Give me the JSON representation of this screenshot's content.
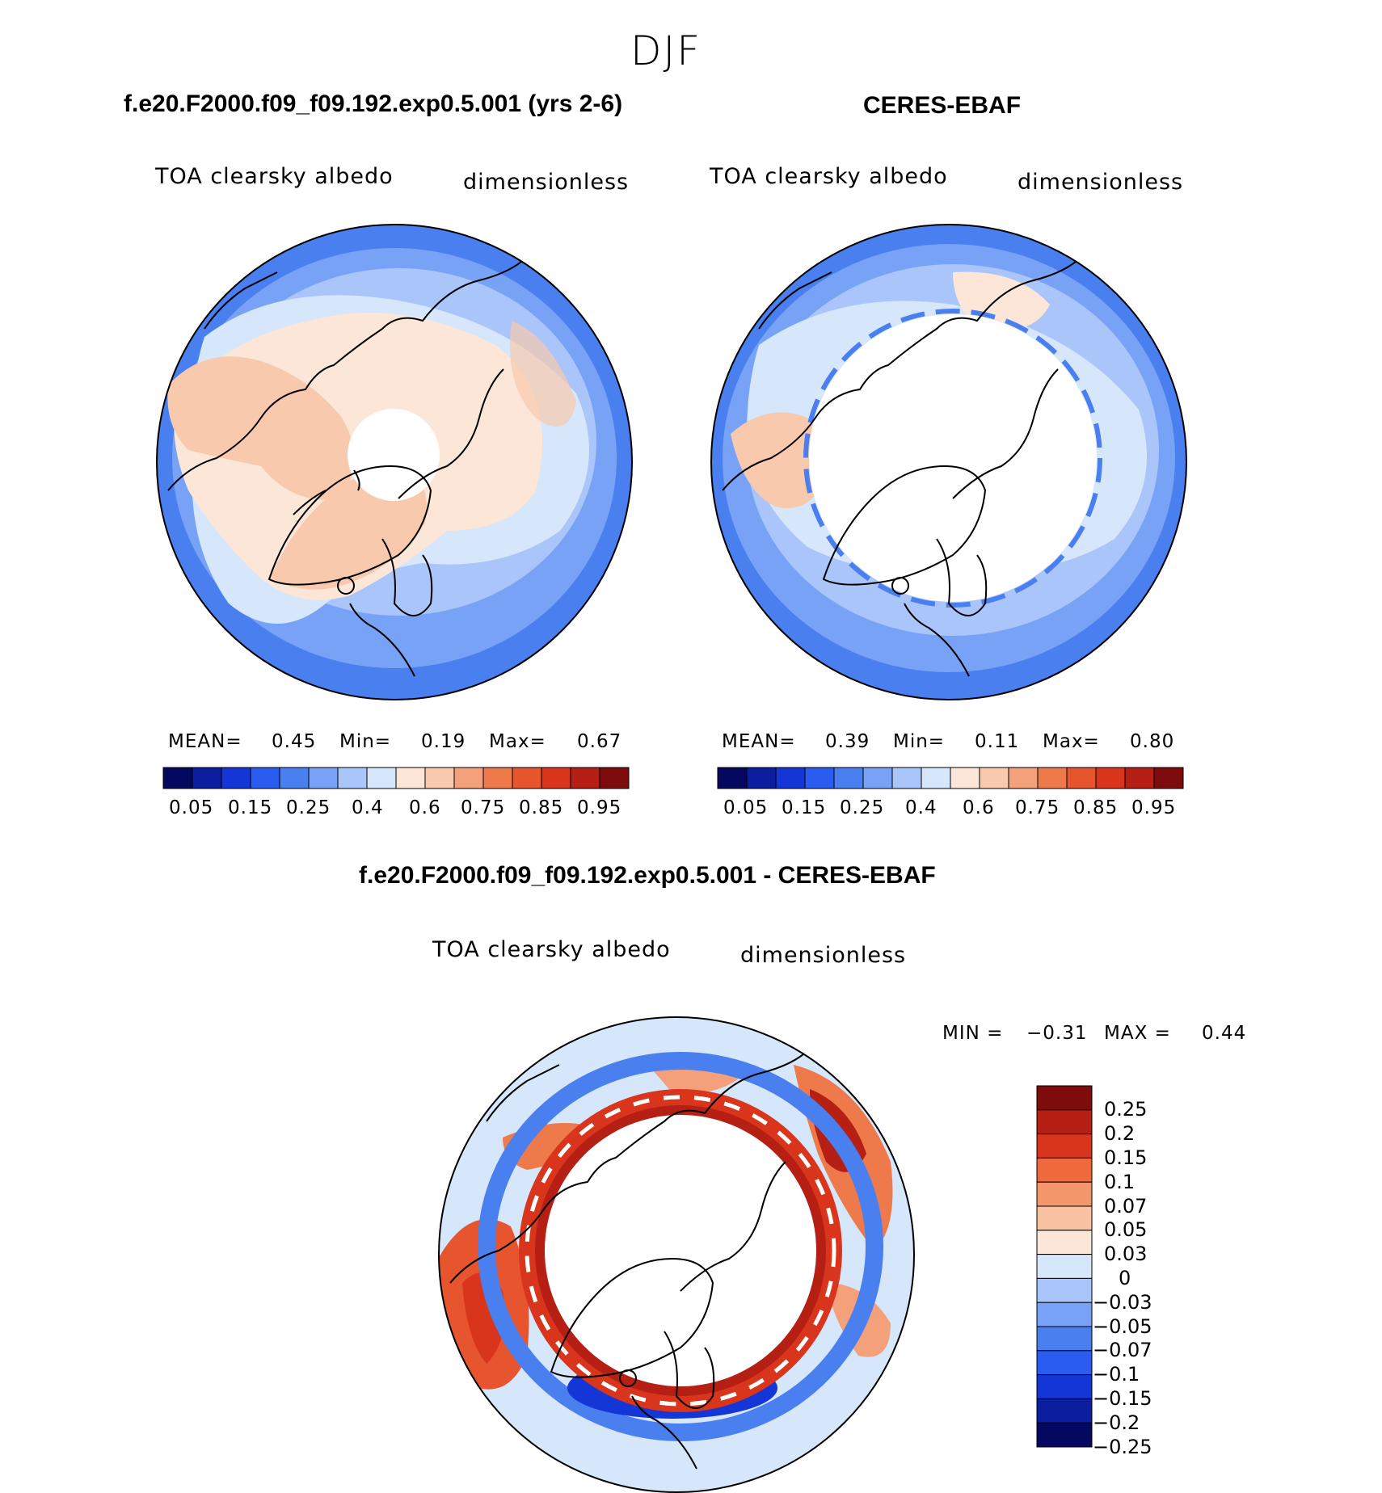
{
  "figure": {
    "season": "DJF",
    "colors": {
      "seq": [
        "#04085e",
        "#0b1f9e",
        "#1536d6",
        "#2a5cf0",
        "#4a7ff0",
        "#77a2f5",
        "#a9c5fa",
        "#d6e6fb",
        "#fbe6d8",
        "#f8c9ad",
        "#f4a07b",
        "#ee7a4b",
        "#e6552e",
        "#d9341c",
        "#b51f14",
        "#7f0c0c"
      ],
      "diff": [
        "#7f0c0c",
        "#b51f14",
        "#d9341c",
        "#ee6a3d",
        "#f4976c",
        "#f8c2a3",
        "#fbe6d8",
        "#d6e6fb",
        "#a9c5fa",
        "#77a2f5",
        "#4a7ff0",
        "#2a5cf0",
        "#1536d6",
        "#0b1f9e",
        "#04085e"
      ]
    }
  },
  "panels": [
    {
      "title": "f.e20.F2000.f09_f09.192.exp0.5.001 (yrs 2-6)",
      "variable": "TOA clearsky albedo",
      "units": "dimensionless",
      "stats": {
        "mean_label": "MEAN=",
        "mean": "0.45",
        "min_label": "Min=",
        "min": "0.19",
        "max_label": "Max=",
        "max": "0.67"
      },
      "ticks": [
        "0.05",
        "0.15",
        "0.25",
        "0.4",
        "0.6",
        "0.75",
        "0.85",
        "0.95"
      ]
    },
    {
      "title": "CERES-EBAF",
      "variable": "TOA clearsky albedo",
      "units": "dimensionless",
      "stats": {
        "mean_label": "MEAN=",
        "mean": "0.39",
        "min_label": "Min=",
        "min": "0.11",
        "max_label": "Max=",
        "max": "0.80"
      },
      "ticks": [
        "0.05",
        "0.15",
        "0.25",
        "0.4",
        "0.6",
        "0.75",
        "0.85",
        "0.95"
      ]
    }
  ],
  "diff": {
    "title": "f.e20.F2000.f09_f09.192.exp0.5.001 - CERES-EBAF",
    "variable": "TOA clearsky albedo",
    "units": "dimensionless",
    "stats": {
      "min_label": "MIN =",
      "min": "−0.31",
      "max_label": "MAX =",
      "max": "0.44"
    },
    "ticks": [
      "0.25",
      "0.2",
      "0.15",
      "0.1",
      "0.07",
      "0.05",
      "0.03",
      "0",
      "−0.03",
      "−0.05",
      "−0.07",
      "−0.1",
      "−0.15",
      "−0.2",
      "−0.25"
    ]
  }
}
